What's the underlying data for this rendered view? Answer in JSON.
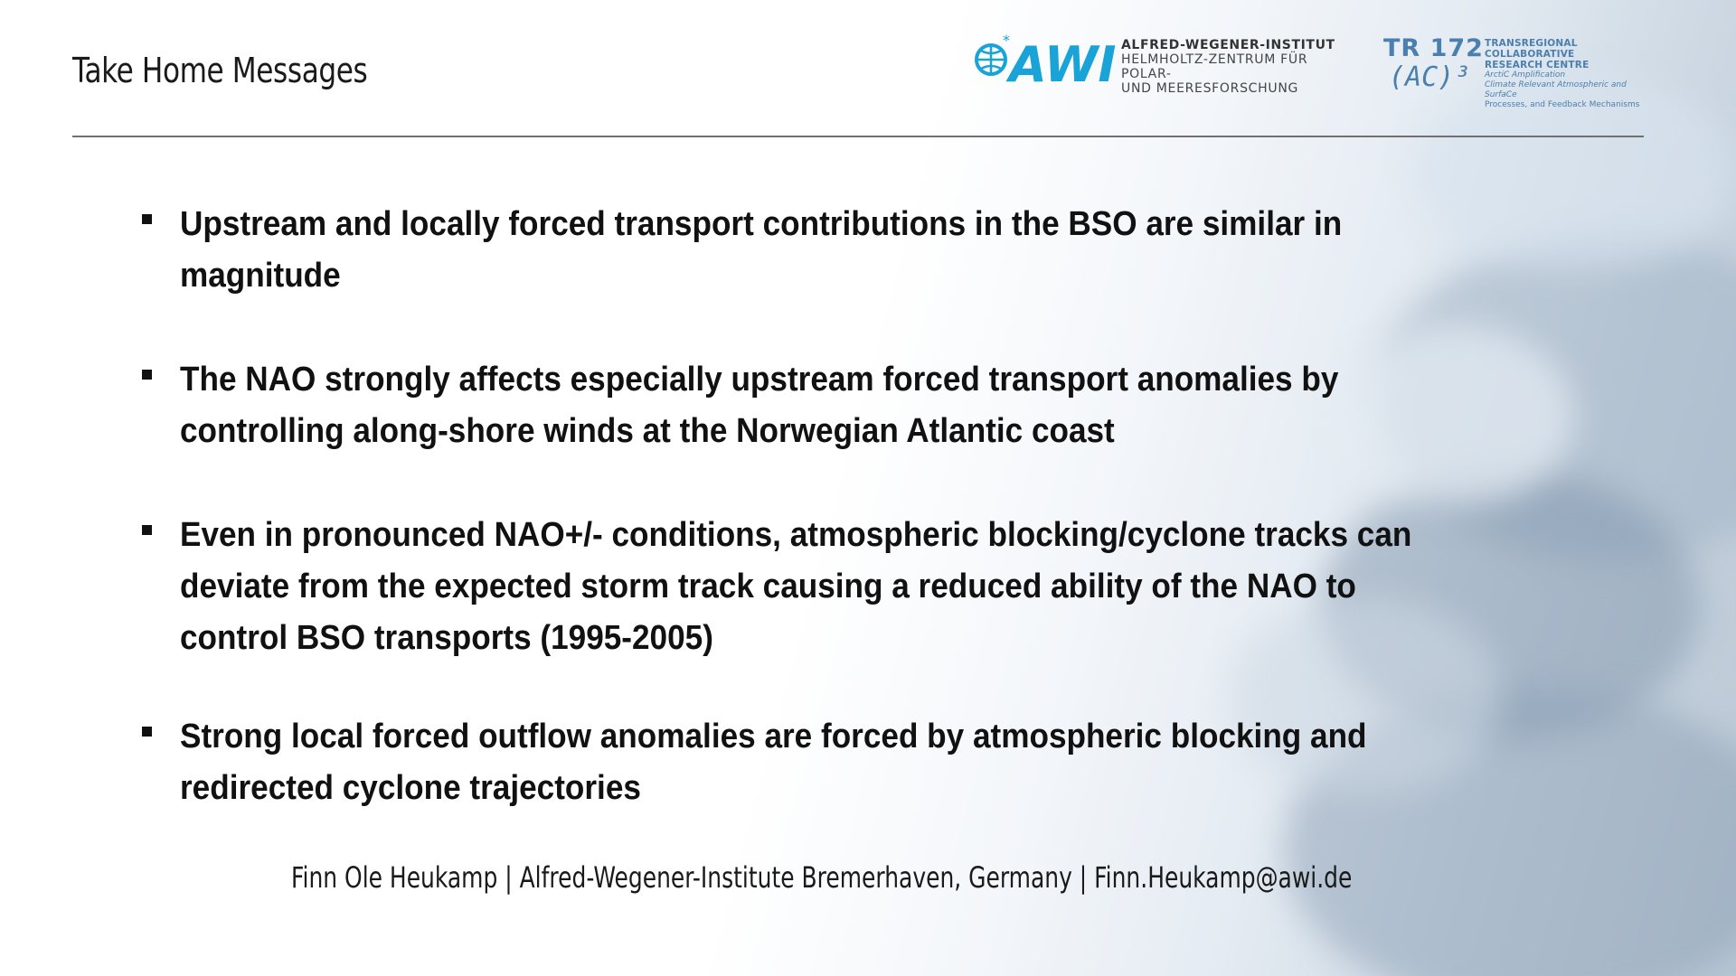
{
  "slide": {
    "title": "Take Home Messages",
    "bullets": [
      "Upstream and locally forced transport contributions in the BSO are similar in magnitude",
      "The NAO strongly affects especially upstream forced transport anomalies by controlling along-shore winds at the Norwegian Atlantic coast",
      "Even in pronounced NAO+/- conditions, atmospheric blocking/cyclone tracks can deviate from the expected storm track causing a reduced ability of the NAO to control BSO transports (1995-2005)",
      "Strong local forced outflow anomalies are forced by atmospheric blocking and redirected cyclone trajectories"
    ],
    "footer": "Finn Ole Heukamp | Alfred-Wegener-Institute Bremerhaven, Germany | Finn.Heukamp@awi.de"
  },
  "logos": {
    "awi": {
      "mark": "AWI",
      "line1": "ALFRED-WEGENER-INSTITUT",
      "line2": "HELMHOLTZ-ZENTRUM FÜR POLAR-",
      "line3": "UND MEERESFORSCHUNG",
      "color": "#1aa3d6"
    },
    "tr172": {
      "code": "TR 172",
      "sub": "(AC)³",
      "line1": "TRANSREGIONAL COLLABORATIVE",
      "line2": "RESEARCH CENTRE",
      "line3": "ArctiC Amplification",
      "line4": "Climate Relevant Atmospheric and SurfaCe",
      "line5": "Processes, and Feedback Mechanisms",
      "color": "#4a7fae"
    }
  },
  "icons": {
    "bullet_marker": "square-bullet-icon"
  }
}
